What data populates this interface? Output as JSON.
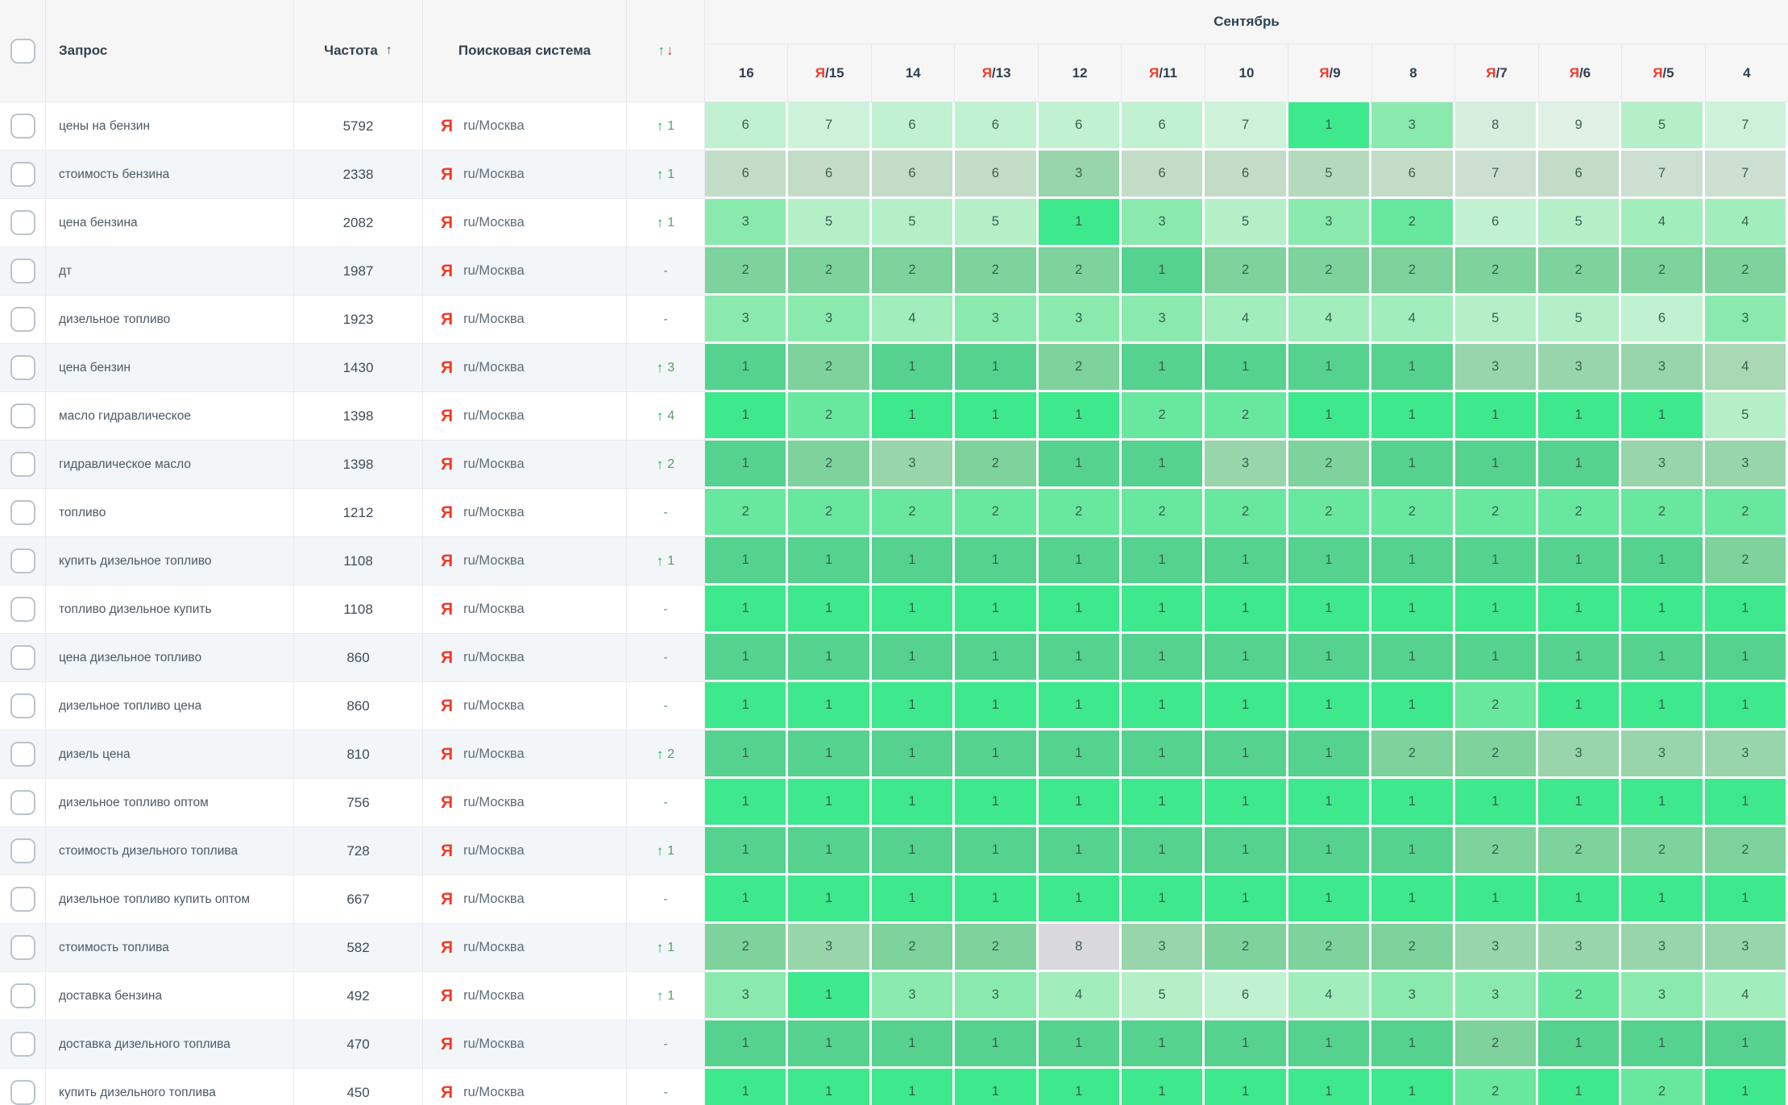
{
  "header": {
    "query_label": "Запрос",
    "frequency_label": "Частота",
    "frequency_sort_icon": "↑",
    "engine_label": "Поисковая система",
    "change_up_icon": "↑",
    "change_down_icon": "↓",
    "month_label": "Сентябрь",
    "dates": [
      {
        "prefix": "",
        "label": "16"
      },
      {
        "prefix": "Я",
        "label": "/15"
      },
      {
        "prefix": "",
        "label": "14"
      },
      {
        "prefix": "Я",
        "label": "/13"
      },
      {
        "prefix": "",
        "label": "12"
      },
      {
        "prefix": "Я",
        "label": "/11"
      },
      {
        "prefix": "",
        "label": "10"
      },
      {
        "prefix": "Я",
        "label": "/9"
      },
      {
        "prefix": "",
        "label": "8"
      },
      {
        "prefix": "Я",
        "label": "/7"
      },
      {
        "prefix": "Я",
        "label": "/6"
      },
      {
        "prefix": "Я",
        "label": "/5"
      },
      {
        "prefix": "",
        "label": "4"
      }
    ]
  },
  "engine": {
    "icon": "Я",
    "region": "ru/Москва"
  },
  "change_arrow": "↑",
  "change_dash": "-",
  "colors": {
    "palette_odd": [
      "#3ee88c",
      "#68e79e",
      "#8aeaad",
      "#a2edbc",
      "#b4efc8",
      "#c0f1d1",
      "#ccf3da",
      "#d5eedd",
      "#dff1e5"
    ],
    "palette_even": [
      "#55d28e",
      "#7ed29b",
      "#98d5aa",
      "#a8d8b4",
      "#b4dabe",
      "#c2dcc8",
      "#ccdfd1",
      "#d5e2d8",
      "#dee6df"
    ],
    "neutral_cell": "#d9d8dc",
    "accent_green": "#12b260",
    "accent_red": "#f03b26"
  },
  "rows": [
    {
      "query": "цены на бензин",
      "frequency": "5792",
      "change": "1",
      "positions": [
        6,
        7,
        6,
        6,
        6,
        6,
        7,
        1,
        3,
        8,
        9,
        5,
        7
      ]
    },
    {
      "query": "стоимость бензина",
      "frequency": "2338",
      "change": "1",
      "positions": [
        6,
        6,
        6,
        6,
        3,
        6,
        6,
        5,
        6,
        7,
        6,
        7,
        7
      ]
    },
    {
      "query": "цена бензина",
      "frequency": "2082",
      "change": "1",
      "positions": [
        3,
        5,
        5,
        5,
        1,
        3,
        5,
        3,
        2,
        6,
        5,
        4,
        4
      ]
    },
    {
      "query": "дт",
      "frequency": "1987",
      "change": "-",
      "positions": [
        2,
        2,
        2,
        2,
        2,
        1,
        2,
        2,
        2,
        2,
        2,
        2,
        2
      ]
    },
    {
      "query": "дизельное топливо",
      "frequency": "1923",
      "change": "-",
      "positions": [
        3,
        3,
        4,
        3,
        3,
        3,
        4,
        4,
        4,
        5,
        5,
        6,
        3
      ]
    },
    {
      "query": "цена бензин",
      "frequency": "1430",
      "change": "3",
      "positions": [
        1,
        2,
        1,
        1,
        2,
        1,
        1,
        1,
        1,
        3,
        3,
        3,
        4
      ]
    },
    {
      "query": "масло гидравлическое",
      "frequency": "1398",
      "change": "4",
      "positions": [
        1,
        2,
        1,
        1,
        1,
        2,
        2,
        1,
        1,
        1,
        1,
        1,
        5
      ]
    },
    {
      "query": "гидравлическое масло",
      "frequency": "1398",
      "change": "2",
      "positions": [
        1,
        2,
        3,
        2,
        1,
        1,
        3,
        2,
        1,
        1,
        1,
        3,
        3
      ]
    },
    {
      "query": "топливо",
      "frequency": "1212",
      "change": "-",
      "positions": [
        2,
        2,
        2,
        2,
        2,
        2,
        2,
        2,
        2,
        2,
        2,
        2,
        2
      ]
    },
    {
      "query": "купить дизельное топливо",
      "frequency": "1108",
      "change": "1",
      "positions": [
        1,
        1,
        1,
        1,
        1,
        1,
        1,
        1,
        1,
        1,
        1,
        1,
        2
      ]
    },
    {
      "query": "топливо дизельное купить",
      "frequency": "1108",
      "change": "-",
      "positions": [
        1,
        1,
        1,
        1,
        1,
        1,
        1,
        1,
        1,
        1,
        1,
        1,
        1
      ]
    },
    {
      "query": "цена дизельное топливо",
      "frequency": "860",
      "change": "-",
      "positions": [
        1,
        1,
        1,
        1,
        1,
        1,
        1,
        1,
        1,
        1,
        1,
        1,
        1
      ]
    },
    {
      "query": "дизельное топливо цена",
      "frequency": "860",
      "change": "-",
      "positions": [
        1,
        1,
        1,
        1,
        1,
        1,
        1,
        1,
        1,
        2,
        1,
        1,
        1
      ]
    },
    {
      "query": "дизель цена",
      "frequency": "810",
      "change": "2",
      "positions": [
        1,
        1,
        1,
        1,
        1,
        1,
        1,
        1,
        2,
        2,
        3,
        3,
        3
      ]
    },
    {
      "query": "дизельное топливо оптом",
      "frequency": "756",
      "change": "-",
      "positions": [
        1,
        1,
        1,
        1,
        1,
        1,
        1,
        1,
        1,
        1,
        1,
        1,
        1
      ]
    },
    {
      "query": "стоимость дизельного топлива",
      "frequency": "728",
      "change": "1",
      "positions": [
        1,
        1,
        1,
        1,
        1,
        1,
        1,
        1,
        1,
        2,
        2,
        2,
        2
      ]
    },
    {
      "query": "дизельное топливо купить оптом",
      "frequency": "667",
      "change": "-",
      "positions": [
        1,
        1,
        1,
        1,
        1,
        1,
        1,
        1,
        1,
        1,
        1,
        1,
        1
      ]
    },
    {
      "query": "стоимость топлива",
      "frequency": "582",
      "change": "1",
      "positions": [
        2,
        3,
        2,
        2,
        8,
        3,
        2,
        2,
        2,
        3,
        3,
        3,
        3
      ],
      "neutral_cols": [
        5
      ]
    },
    {
      "query": "доставка бензина",
      "frequency": "492",
      "change": "1",
      "positions": [
        3,
        1,
        3,
        3,
        4,
        5,
        6,
        4,
        3,
        3,
        2,
        3,
        4
      ]
    },
    {
      "query": "доставка дизельного топлива",
      "frequency": "470",
      "change": "-",
      "positions": [
        1,
        1,
        1,
        1,
        1,
        1,
        1,
        1,
        1,
        2,
        1,
        1,
        1
      ]
    },
    {
      "query": "купить дизельного топлива",
      "frequency": "450",
      "change": "-",
      "positions": [
        1,
        1,
        1,
        1,
        1,
        1,
        1,
        1,
        1,
        2,
        1,
        2,
        1
      ]
    }
  ]
}
